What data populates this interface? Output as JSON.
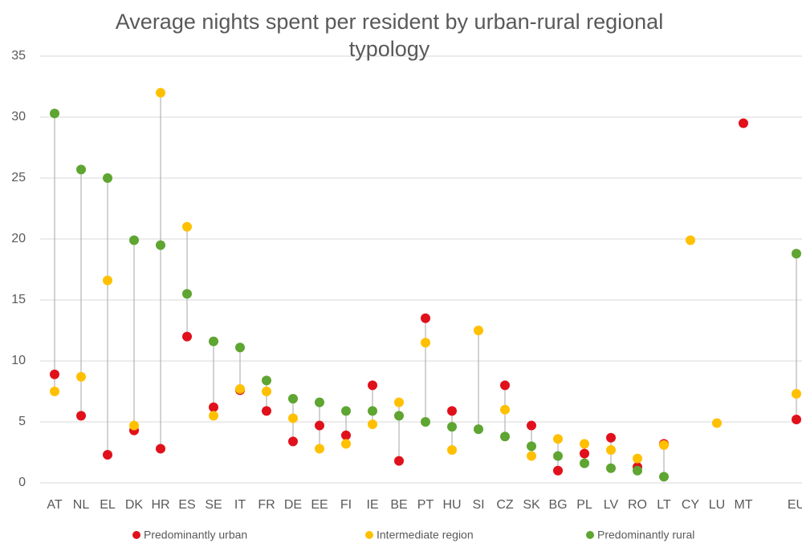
{
  "chart_data": {
    "type": "dot-range",
    "title": "Average nights spent per resident by urban-rural regional typology",
    "categories": [
      "AT",
      "NL",
      "EL",
      "DK",
      "HR",
      "ES",
      "SE",
      "IT",
      "FR",
      "DE",
      "EE",
      "FI",
      "IE",
      "BE",
      "PT",
      "HU",
      "SI",
      "CZ",
      "SK",
      "BG",
      "PL",
      "LV",
      "RO",
      "LT",
      "CY",
      "LU",
      "MT",
      null,
      "EU"
    ],
    "series": [
      {
        "name": "Predominantly urban",
        "color": "#e0111b",
        "values": [
          8.9,
          5.5,
          2.3,
          4.3,
          2.8,
          12.0,
          6.2,
          7.6,
          5.9,
          3.4,
          4.7,
          3.9,
          8.0,
          1.8,
          13.5,
          5.9,
          null,
          8.0,
          4.7,
          1.0,
          2.4,
          3.7,
          1.3,
          3.2,
          null,
          null,
          29.5,
          null,
          5.2
        ]
      },
      {
        "name": "Intermediate region",
        "color": "#ffc000",
        "values": [
          7.5,
          8.7,
          16.6,
          4.7,
          32.0,
          21.0,
          5.5,
          7.7,
          7.5,
          5.3,
          2.8,
          3.2,
          4.8,
          6.6,
          11.5,
          2.7,
          12.5,
          6.0,
          2.2,
          3.6,
          3.2,
          2.7,
          2.0,
          3.1,
          19.9,
          4.9,
          null,
          null,
          7.3
        ]
      },
      {
        "name": "Predominantly rural",
        "color": "#5ea531",
        "values": [
          30.3,
          25.7,
          25.0,
          19.9,
          19.5,
          15.5,
          11.6,
          11.1,
          8.4,
          6.9,
          6.6,
          5.9,
          5.9,
          5.5,
          5.0,
          4.6,
          4.4,
          3.8,
          3.0,
          2.2,
          1.6,
          1.2,
          1.0,
          0.5,
          null,
          null,
          null,
          null,
          18.8
        ]
      }
    ],
    "ylim": [
      0,
      35
    ],
    "yticks": [
      0,
      5,
      10,
      15,
      20,
      25,
      30,
      35
    ],
    "grid": true,
    "legend": "bottom"
  }
}
